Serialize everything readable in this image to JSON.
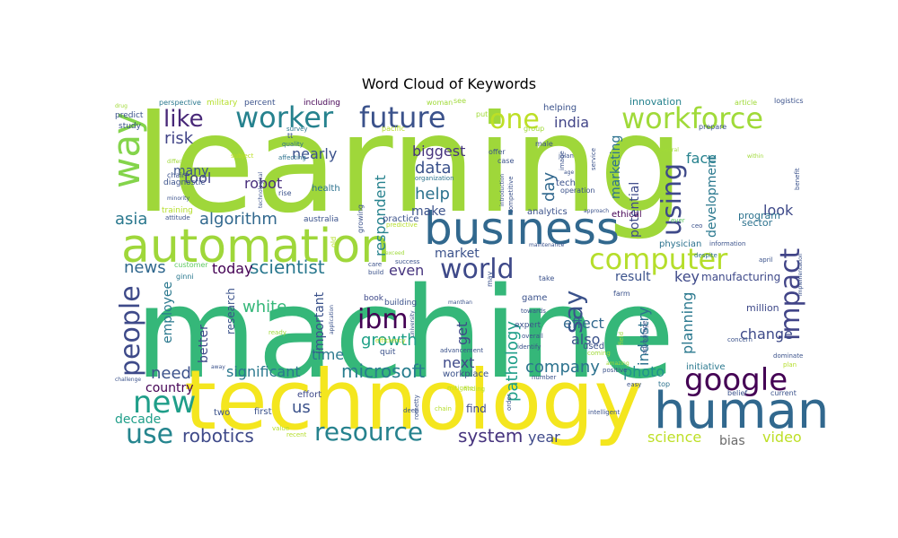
{
  "chart_data": {
    "type": "wordcloud",
    "title": "Word Cloud of Keywords",
    "palette": "viridis",
    "background": "#ffffff",
    "words": [
      {
        "text": "learning",
        "color": "#9fd73a"
      },
      {
        "text": "machine",
        "color": "#35b779"
      },
      {
        "text": "technology",
        "color": "#f4e61e"
      },
      {
        "text": "automation",
        "color": "#9fd73a"
      },
      {
        "text": "business",
        "color": "#31688e"
      },
      {
        "text": "human",
        "color": "#31688e"
      },
      {
        "text": "worker",
        "color": "#26828e"
      },
      {
        "text": "future",
        "color": "#3b528b"
      },
      {
        "text": "workforce",
        "color": "#a0da39"
      },
      {
        "text": "computer",
        "color": "#b5de2b"
      },
      {
        "text": "google",
        "color": "#440154"
      },
      {
        "text": "world",
        "color": "#3e4989"
      },
      {
        "text": "resource",
        "color": "#26828e"
      },
      {
        "text": "new",
        "color": "#1f9e89"
      },
      {
        "text": "use",
        "color": "#25858e"
      },
      {
        "text": "way",
        "color": "#84d44b"
      },
      {
        "text": "like",
        "color": "#482878"
      },
      {
        "text": "one",
        "color": "#bddf26"
      },
      {
        "text": "impact",
        "color": "#414487"
      },
      {
        "text": "ibm",
        "color": "#440154"
      },
      {
        "text": "people",
        "color": "#3e4a89"
      },
      {
        "text": "using",
        "color": "#3e4989"
      },
      {
        "text": "say",
        "color": "#3b528b"
      },
      {
        "text": "algorithm",
        "color": "#31688e"
      },
      {
        "text": "scientist",
        "color": "#2a788e"
      },
      {
        "text": "microsoft",
        "color": "#287d8e"
      },
      {
        "text": "robotics",
        "color": "#3e4989"
      },
      {
        "text": "system",
        "color": "#46337e"
      },
      {
        "text": "company",
        "color": "#2c728e"
      },
      {
        "text": "news",
        "color": "#31688e"
      },
      {
        "text": "asia",
        "color": "#2a788e"
      },
      {
        "text": "need",
        "color": "#3b528b"
      },
      {
        "text": "risk",
        "color": "#414487"
      },
      {
        "text": "data",
        "color": "#3b528b"
      },
      {
        "text": "help",
        "color": "#2c728e"
      },
      {
        "text": "day",
        "color": "#31688e"
      },
      {
        "text": "growth",
        "color": "#1fa187"
      },
      {
        "text": "pathology",
        "color": "#1f9e89"
      },
      {
        "text": "white",
        "color": "#35b779"
      },
      {
        "text": "robot",
        "color": "#472d7b"
      },
      {
        "text": "nearly",
        "color": "#3b528b"
      },
      {
        "text": "tool",
        "color": "#414487"
      },
      {
        "text": "many",
        "color": "#3b528b"
      },
      {
        "text": "today",
        "color": "#440154"
      },
      {
        "text": "even",
        "color": "#46337e"
      },
      {
        "text": "change",
        "color": "#3e4a89"
      },
      {
        "text": "effect",
        "color": "#31688e"
      },
      {
        "text": "also",
        "color": "#3b528b"
      },
      {
        "text": "photo",
        "color": "#21918c"
      },
      {
        "text": "key",
        "color": "#3e4989"
      },
      {
        "text": "significant",
        "color": "#2a788e"
      },
      {
        "text": "country",
        "color": "#440154"
      },
      {
        "text": "decade",
        "color": "#1f9e89"
      },
      {
        "text": "us",
        "color": "#3b528b"
      },
      {
        "text": "time",
        "color": "#2a788e"
      },
      {
        "text": "next",
        "color": "#3e4989"
      },
      {
        "text": "year",
        "color": "#3e4989"
      },
      {
        "text": "science",
        "color": "#bddf26"
      },
      {
        "text": "bias",
        "color": "#6a6a6a"
      },
      {
        "text": "video",
        "color": "#bddf26"
      },
      {
        "text": "look",
        "color": "#3e4989"
      },
      {
        "text": "face",
        "color": "#26828e"
      },
      {
        "text": "planning",
        "color": "#2a788e"
      },
      {
        "text": "industry",
        "color": "#2c728e"
      },
      {
        "text": "marketing",
        "color": "#2c728e"
      },
      {
        "text": "potential",
        "color": "#3e4a89"
      },
      {
        "text": "development",
        "color": "#2a788e"
      },
      {
        "text": "india",
        "color": "#414487"
      },
      {
        "text": "biggest",
        "color": "#46337e"
      },
      {
        "text": "respondent",
        "color": "#26828e"
      },
      {
        "text": "make",
        "color": "#3b528b"
      },
      {
        "text": "market",
        "color": "#3b528b"
      },
      {
        "text": "result",
        "color": "#3b528b"
      },
      {
        "text": "manufacturing",
        "color": "#3e4989"
      },
      {
        "text": "employee",
        "color": "#2a788e"
      },
      {
        "text": "better",
        "color": "#3e4989"
      },
      {
        "text": "research",
        "color": "#3b528b"
      },
      {
        "text": "important",
        "color": "#3b528b"
      },
      {
        "text": "get",
        "color": "#3e4a89"
      },
      {
        "text": "program",
        "color": "#2c728e"
      },
      {
        "text": "sector",
        "color": "#2c728e"
      },
      {
        "text": "million",
        "color": "#3e4989"
      },
      {
        "text": "innovation",
        "color": "#26828e"
      },
      {
        "text": "analytics",
        "color": "#3b528b"
      },
      {
        "text": "practice",
        "color": "#3b528b"
      },
      {
        "text": "workplace",
        "color": "#3b528b"
      },
      {
        "text": "find",
        "color": "#3e4989"
      },
      {
        "text": "used",
        "color": "#3b528b"
      },
      {
        "text": "initiative",
        "color": "#2a788e"
      },
      {
        "text": "effort",
        "color": "#3e4989"
      },
      {
        "text": "first",
        "color": "#3b528b"
      },
      {
        "text": "two",
        "color": "#3b528b"
      },
      {
        "text": "health",
        "color": "#2c728e"
      },
      {
        "text": "australia",
        "color": "#3b528b"
      },
      {
        "text": "game",
        "color": "#3b528b"
      },
      {
        "text": "book",
        "color": "#3e4989"
      },
      {
        "text": "expert",
        "color": "#3b528b"
      },
      {
        "text": "building",
        "color": "#3b528b"
      },
      {
        "text": "quit",
        "color": "#3b528b"
      },
      {
        "text": "tech",
        "color": "#3b528b"
      },
      {
        "text": "ethical",
        "color": "#440154"
      },
      {
        "text": "physician",
        "color": "#2c728e"
      },
      {
        "text": "helping",
        "color": "#3b528b"
      },
      {
        "text": "including",
        "color": "#440154"
      },
      {
        "text": "percent",
        "color": "#3b528b"
      },
      {
        "text": "military",
        "color": "#b5de2b"
      },
      {
        "text": "perspective",
        "color": "#2a788e"
      },
      {
        "text": "predict",
        "color": "#3b528b"
      },
      {
        "text": "study",
        "color": "#3b528b"
      },
      {
        "text": "diagnostic",
        "color": "#3b528b"
      },
      {
        "text": "training",
        "color": "#b5de2b"
      },
      {
        "text": "customer",
        "color": "#5ec962"
      },
      {
        "text": "ginni",
        "color": "#2a788e"
      },
      {
        "text": "chair",
        "color": "#3b528b"
      },
      {
        "text": "attitude",
        "color": "#3b528b"
      },
      {
        "text": "rise",
        "color": "#3b528b"
      },
      {
        "text": "survey",
        "color": "#2a788e"
      },
      {
        "text": "quality",
        "color": "#2c728e"
      },
      {
        "text": "affecting",
        "color": "#2c728e"
      },
      {
        "text": "subject",
        "color": "#bddf26"
      },
      {
        "text": "pacific",
        "color": "#b5de2b"
      },
      {
        "text": "woman",
        "color": "#a0da39"
      },
      {
        "text": "see",
        "color": "#a0da39"
      },
      {
        "text": "put",
        "color": "#a0da39"
      },
      {
        "text": "offer",
        "color": "#3b528b"
      },
      {
        "text": "case",
        "color": "#3b528b"
      },
      {
        "text": "group",
        "color": "#a0da39"
      },
      {
        "text": "male",
        "color": "#3b528b"
      },
      {
        "text": "organization",
        "color": "#2c728e"
      },
      {
        "text": "success",
        "color": "#3b528b"
      },
      {
        "text": "predictive",
        "color": "#b5de2b"
      },
      {
        "text": "care",
        "color": "#3b528b"
      },
      {
        "text": "build",
        "color": "#3b528b"
      },
      {
        "text": "take",
        "color": "#3b528b"
      },
      {
        "text": "farm",
        "color": "#3b528b"
      },
      {
        "text": "ready",
        "color": "#a0da39"
      },
      {
        "text": "efficiency",
        "color": "#bddf26"
      },
      {
        "text": "advancement",
        "color": "#3b528b"
      },
      {
        "text": "overall",
        "color": "#3b528b"
      },
      {
        "text": "identify",
        "color": "#3b528b"
      },
      {
        "text": "number",
        "color": "#3b528b"
      },
      {
        "text": "mitigate",
        "color": "#b5de2b"
      },
      {
        "text": "chain",
        "color": "#b5de2b"
      },
      {
        "text": "finding",
        "color": "#b5de2b"
      },
      {
        "text": "coming",
        "color": "#a0da39"
      },
      {
        "text": "positive",
        "color": "#3b528b"
      },
      {
        "text": "easy",
        "color": "#3b528b"
      },
      {
        "text": "top",
        "color": "#2c728e"
      },
      {
        "text": "intelligent",
        "color": "#3b528b"
      },
      {
        "text": "belief",
        "color": "#3b528b"
      },
      {
        "text": "current",
        "color": "#3b528b"
      },
      {
        "text": "dominate",
        "color": "#3b528b"
      },
      {
        "text": "concern",
        "color": "#3b528b"
      },
      {
        "text": "april",
        "color": "#3b528b"
      },
      {
        "text": "information",
        "color": "#3b528b"
      },
      {
        "text": "despite",
        "color": "#2c728e"
      },
      {
        "text": "ever",
        "color": "#5ec962"
      },
      {
        "text": "ceo",
        "color": "#3b528b"
      },
      {
        "text": "prepare",
        "color": "#3b528b"
      },
      {
        "text": "article",
        "color": "#a0da39"
      },
      {
        "text": "logistics",
        "color": "#3b528b"
      },
      {
        "text": "within",
        "color": "#a0da39"
      },
      {
        "text": "benefit",
        "color": "#3b528b"
      },
      {
        "text": "several",
        "color": "#a0da39"
      },
      {
        "text": "service",
        "color": "#3b528b"
      },
      {
        "text": "operation",
        "color": "#3b528b"
      },
      {
        "text": "image",
        "color": "#3b528b"
      },
      {
        "text": "age",
        "color": "#3b528b"
      },
      {
        "text": "jalan",
        "color": "#3b528b"
      },
      {
        "text": "approach",
        "color": "#3b528b"
      },
      {
        "text": "towards",
        "color": "#3b528b"
      },
      {
        "text": "deep",
        "color": "#3b528b"
      },
      {
        "text": "rometty",
        "color": "#3b528b"
      },
      {
        "text": "manthan",
        "color": "#3b528b"
      },
      {
        "text": "university",
        "color": "#3b528b"
      },
      {
        "text": "application",
        "color": "#3b528b"
      },
      {
        "text": "old",
        "color": "#b5de2b"
      },
      {
        "text": "growing",
        "color": "#3b528b"
      },
      {
        "text": "competitive",
        "color": "#3b528b"
      },
      {
        "text": "introduction",
        "color": "#3b528b"
      },
      {
        "text": "may",
        "color": "#3b528b"
      },
      {
        "text": "order",
        "color": "#3b528b"
      },
      {
        "text": "advantage",
        "color": "#3b528b"
      },
      {
        "text": "field",
        "color": "#a0da39"
      },
      {
        "text": "maintenance",
        "color": "#3b528b"
      },
      {
        "text": "different",
        "color": "#a0da39"
      },
      {
        "text": "minority",
        "color": "#3b528b"
      },
      {
        "text": "challenge",
        "color": "#3b528b"
      },
      {
        "text": "drug",
        "color": "#a0da39"
      },
      {
        "text": "technological",
        "color": "#3b528b"
      },
      {
        "text": "exceed",
        "color": "#a0da39"
      },
      {
        "text": "amazing",
        "color": "#a0da39"
      },
      {
        "text": "implementation",
        "color": "#3b528b"
      },
      {
        "text": "value",
        "color": "#b5de2b"
      },
      {
        "text": "recent",
        "color": "#b5de2b"
      },
      {
        "text": "plan",
        "color": "#b5de2b"
      },
      {
        "text": "tt",
        "color": "#3b528b"
      },
      {
        "text": "away",
        "color": "#3b528b"
      }
    ]
  }
}
